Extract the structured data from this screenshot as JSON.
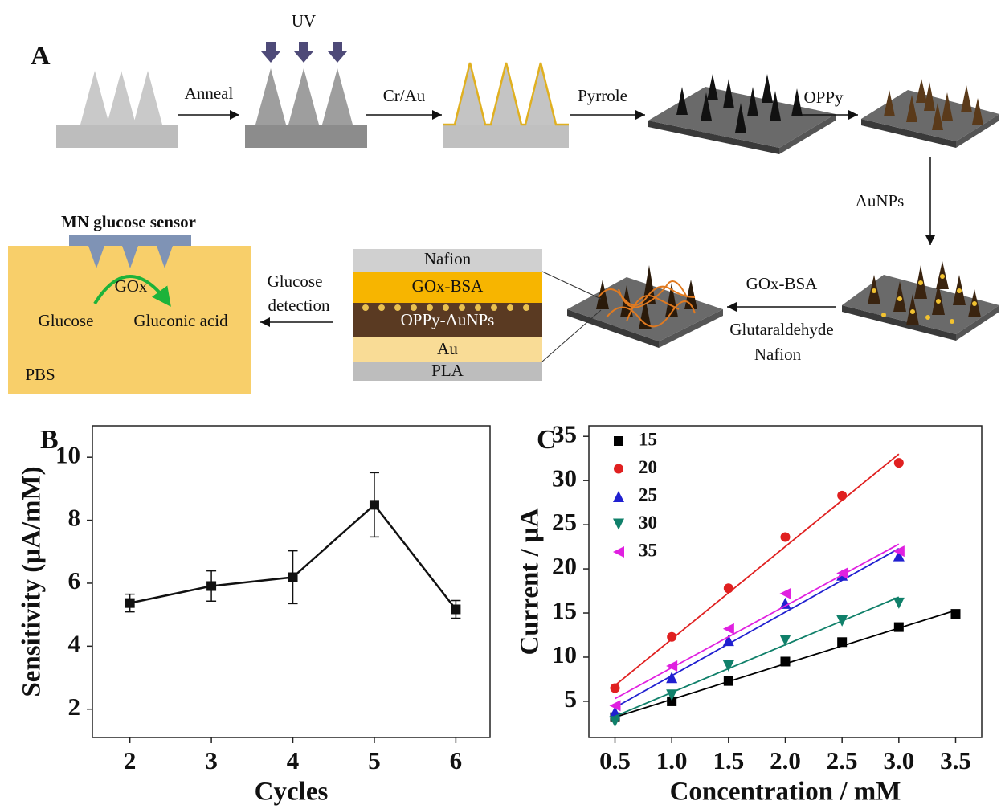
{
  "panel_a": {
    "label": "A",
    "uv": "UV",
    "steps": [
      "Anneal",
      "Cr/Au",
      "Pyrrole",
      "OPPy",
      "AuNPs"
    ],
    "crosslink": [
      "GOx-BSA",
      "Glutaraldehyde",
      "Nafion"
    ],
    "detection": [
      "Glucose",
      "detection"
    ],
    "sensor": {
      "title": "MN glucose sensor",
      "enzyme": "GOx",
      "substrate": "Glucose",
      "product": "Gluconic acid",
      "medium": "PBS"
    },
    "layers": [
      "Nafion",
      "GOx-BSA",
      "OPPy-AuNPs",
      "Au",
      "PLA"
    ]
  },
  "chart_data": [
    {
      "type": "line",
      "panel_label": "B",
      "xlabel": "Cycles",
      "ylabel": "Sensitivity (μA/mM)",
      "x": [
        2,
        3,
        4,
        5,
        6
      ],
      "xlim": [
        1.54,
        6.42
      ],
      "ylim": [
        1.1,
        11.0
      ],
      "xticks": [
        2,
        3,
        4,
        5,
        6
      ],
      "yticks": [
        2,
        4,
        6,
        8,
        10
      ],
      "series": [
        {
          "color": "#111111",
          "marker": "square",
          "values": [
            5.37,
            5.91,
            6.19,
            8.49,
            5.17
          ],
          "errors": [
            0.28,
            0.48,
            0.84,
            1.02,
            0.28
          ]
        }
      ]
    },
    {
      "type": "scatter",
      "panel_label": "C",
      "xlabel": "Concentration / mM",
      "ylabel": "Current / μA",
      "xlim": [
        0.27,
        3.73
      ],
      "ylim": [
        0.9,
        36.2
      ],
      "legend": "upper left",
      "xticks": [
        0.5,
        {
          "value": 1,
          "label": "1.0"
        },
        1.5,
        {
          "value": 2,
          "label": "2.0"
        },
        2.5,
        {
          "value": 3,
          "label": "3.0"
        },
        3.5
      ],
      "yticks": [
        5,
        10,
        15,
        20,
        25,
        30,
        35
      ],
      "series": [
        {
          "name": "15",
          "color": "#000000",
          "marker": "square",
          "x": [
            0.5,
            1.0,
            1.5,
            2.0,
            2.5,
            3.0,
            3.5
          ],
          "values": [
            3.2,
            5.0,
            7.3,
            9.5,
            11.7,
            13.4,
            14.9
          ],
          "fit_x": [
            0.5,
            3.5
          ],
          "fit_y": [
            3.2,
            15.3
          ]
        },
        {
          "name": "20",
          "color": "#e02020",
          "marker": "circle",
          "x": [
            0.5,
            1.0,
            1.5,
            2.0,
            2.5,
            3.0
          ],
          "values": [
            6.5,
            12.3,
            17.8,
            23.6,
            28.3,
            32.0
          ],
          "fit_x": [
            0.5,
            3.0
          ],
          "fit_y": [
            6.8,
            33.0
          ]
        },
        {
          "name": "25",
          "color": "#2020d0",
          "marker": "triangle-up",
          "x": [
            0.5,
            1.0,
            1.5,
            2.0,
            2.5,
            3.0
          ],
          "values": [
            3.8,
            7.7,
            11.9,
            16.1,
            19.3,
            21.5
          ],
          "fit_x": [
            0.5,
            3.0
          ],
          "fit_y": [
            4.3,
            22.3
          ]
        },
        {
          "name": "30",
          "color": "#10806a",
          "marker": "triangle-down",
          "x": [
            0.5,
            1.0,
            1.5,
            2.0,
            2.5,
            3.0
          ],
          "values": [
            2.7,
            5.7,
            9.0,
            11.9,
            14.1,
            16.1
          ],
          "fit_x": [
            0.5,
            3.0
          ],
          "fit_y": [
            3.3,
            16.8
          ]
        },
        {
          "name": "35",
          "color": "#e020e0",
          "marker": "triangle-left",
          "x": [
            0.5,
            1.0,
            1.5,
            2.0,
            2.5,
            3.0
          ],
          "values": [
            4.5,
            9.0,
            13.2,
            17.2,
            19.5,
            22.0
          ],
          "fit_x": [
            0.5,
            3.0
          ],
          "fit_y": [
            5.3,
            22.8
          ]
        }
      ]
    }
  ]
}
